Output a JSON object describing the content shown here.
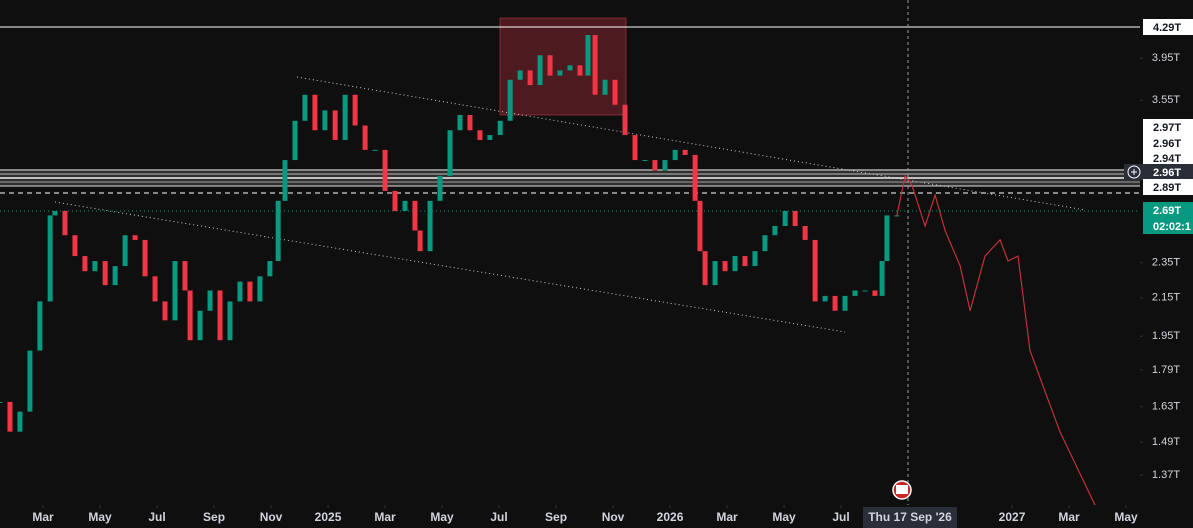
{
  "chart_data": {
    "type": "candlestick",
    "log_scale": true,
    "grid": false,
    "up_color": "#089981",
    "down_color": "#f23645",
    "xlim": [
      0.49,
      40.49
    ],
    "ylim": [
      1.27,
      4.58
    ],
    "xticks": [
      {
        "value": 2,
        "label": "Mar"
      },
      {
        "value": 4,
        "label": "May"
      },
      {
        "value": 6,
        "label": "Jul"
      },
      {
        "value": 8,
        "label": "Sep"
      },
      {
        "value": 10,
        "label": "Nov"
      },
      {
        "value": 12,
        "label": "2025"
      },
      {
        "value": 14,
        "label": "Mar"
      },
      {
        "value": 16,
        "label": "May"
      },
      {
        "value": 18,
        "label": "Jul"
      },
      {
        "value": 20,
        "label": "Sep"
      },
      {
        "value": 22,
        "label": "Nov"
      },
      {
        "value": 24,
        "label": "2026"
      },
      {
        "value": 26,
        "label": "Mar"
      },
      {
        "value": 28,
        "label": "May"
      },
      {
        "value": 30,
        "label": "Jul"
      },
      {
        "value": 36,
        "label": "2027"
      },
      {
        "value": 38,
        "label": "Mar"
      },
      {
        "value": 40,
        "label": "May"
      }
    ],
    "yticks": [
      {
        "value": 1.37,
        "label": "1.37T"
      },
      {
        "value": 1.49,
        "label": "1.49T"
      },
      {
        "value": 1.63,
        "label": "1.63T"
      },
      {
        "value": 1.79,
        "label": "1.79T"
      },
      {
        "value": 1.95,
        "label": "1.95T"
      },
      {
        "value": 2.15,
        "label": "2.15T"
      },
      {
        "value": 2.35,
        "label": "2.35T"
      },
      {
        "value": 3.55,
        "label": "3.55T"
      },
      {
        "value": 3.95,
        "label": "3.95T"
      }
    ],
    "x": [
      0.49,
      0.84,
      1.19,
      1.54,
      1.89,
      2.25,
      2.42,
      2.77,
      3.12,
      3.47,
      3.82,
      4.18,
      4.53,
      4.88,
      5.23,
      5.58,
      5.93,
      6.28,
      6.63,
      6.98,
      7.16,
      7.51,
      7.86,
      8.21,
      8.56,
      8.91,
      9.26,
      9.61,
      9.96,
      10.25,
      10.49,
      10.84,
      11.19,
      11.54,
      11.89,
      12.25,
      12.6,
      12.95,
      13.3,
      13.65,
      14.0,
      14.35,
      14.7,
      15.05,
      15.23,
      15.58,
      15.93,
      16.28,
      16.63,
      16.98,
      17.33,
      17.68,
      18.04,
      18.39,
      18.74,
      19.09,
      19.44,
      19.79,
      20.14,
      20.49,
      20.84,
      21.12,
      21.37,
      21.72,
      22.07,
      22.42,
      22.77,
      23.12,
      23.47,
      23.82,
      24.18,
      24.53,
      24.88,
      25.05,
      25.23,
      25.58,
      25.93,
      26.28,
      26.63,
      26.98,
      27.33,
      27.68,
      28.04,
      28.39,
      28.74,
      29.09,
      29.44,
      29.79,
      30.14,
      30.49,
      30.84,
      31.19,
      31.44,
      31.61,
      31.96
    ],
    "values": [
      1.65,
      1.53,
      1.61,
      1.88,
      2.13,
      2.65,
      2.68,
      2.52,
      2.39,
      2.3,
      2.36,
      2.22,
      2.33,
      2.52,
      2.49,
      2.27,
      2.13,
      2.03,
      2.36,
      2.19,
      1.93,
      2.08,
      2.19,
      1.93,
      2.13,
      2.24,
      2.13,
      2.27,
      2.36,
      2.75,
      3.05,
      3.37,
      3.6,
      3.29,
      3.46,
      3.21,
      3.6,
      3.33,
      3.13,
      3.13,
      2.82,
      2.68,
      2.75,
      2.55,
      2.42,
      2.75,
      2.93,
      3.29,
      3.42,
      3.29,
      3.21,
      3.25,
      3.37,
      3.74,
      3.83,
      3.69,
      3.98,
      3.78,
      3.83,
      3.88,
      3.78,
      4.19,
      3.6,
      3.74,
      3.51,
      3.25,
      3.05,
      3.05,
      2.97,
      3.05,
      3.13,
      3.09,
      2.75,
      2.42,
      2.22,
      2.36,
      2.3,
      2.39,
      2.33,
      2.42,
      2.52,
      2.58,
      2.68,
      2.58,
      2.49,
      2.13,
      2.16,
      2.08,
      2.16,
      2.19,
      2.19,
      2.16,
      2.36,
      2.65,
      2.65
    ],
    "projection": {
      "color": "#c2313a",
      "x": [
        31.96,
        32.25,
        32.49,
        32.95,
        33.3,
        33.65,
        34.18,
        34.53,
        35.05,
        35.58,
        35.86,
        36.21,
        36.63,
        37.68,
        38.91
      ],
      "values": [
        2.65,
        2.93,
        2.86,
        2.58,
        2.79,
        2.55,
        2.33,
        2.08,
        2.39,
        2.49,
        2.36,
        2.39,
        1.88,
        1.53,
        1.27
      ]
    },
    "price_tags": [
      "4.29T",
      "2.97T",
      "2.96T",
      "2.94T",
      "2.96T",
      "2.89T",
      "2.69T",
      "02:02:1"
    ],
    "crosshair_label": "Thu 17 Sep '26"
  }
}
